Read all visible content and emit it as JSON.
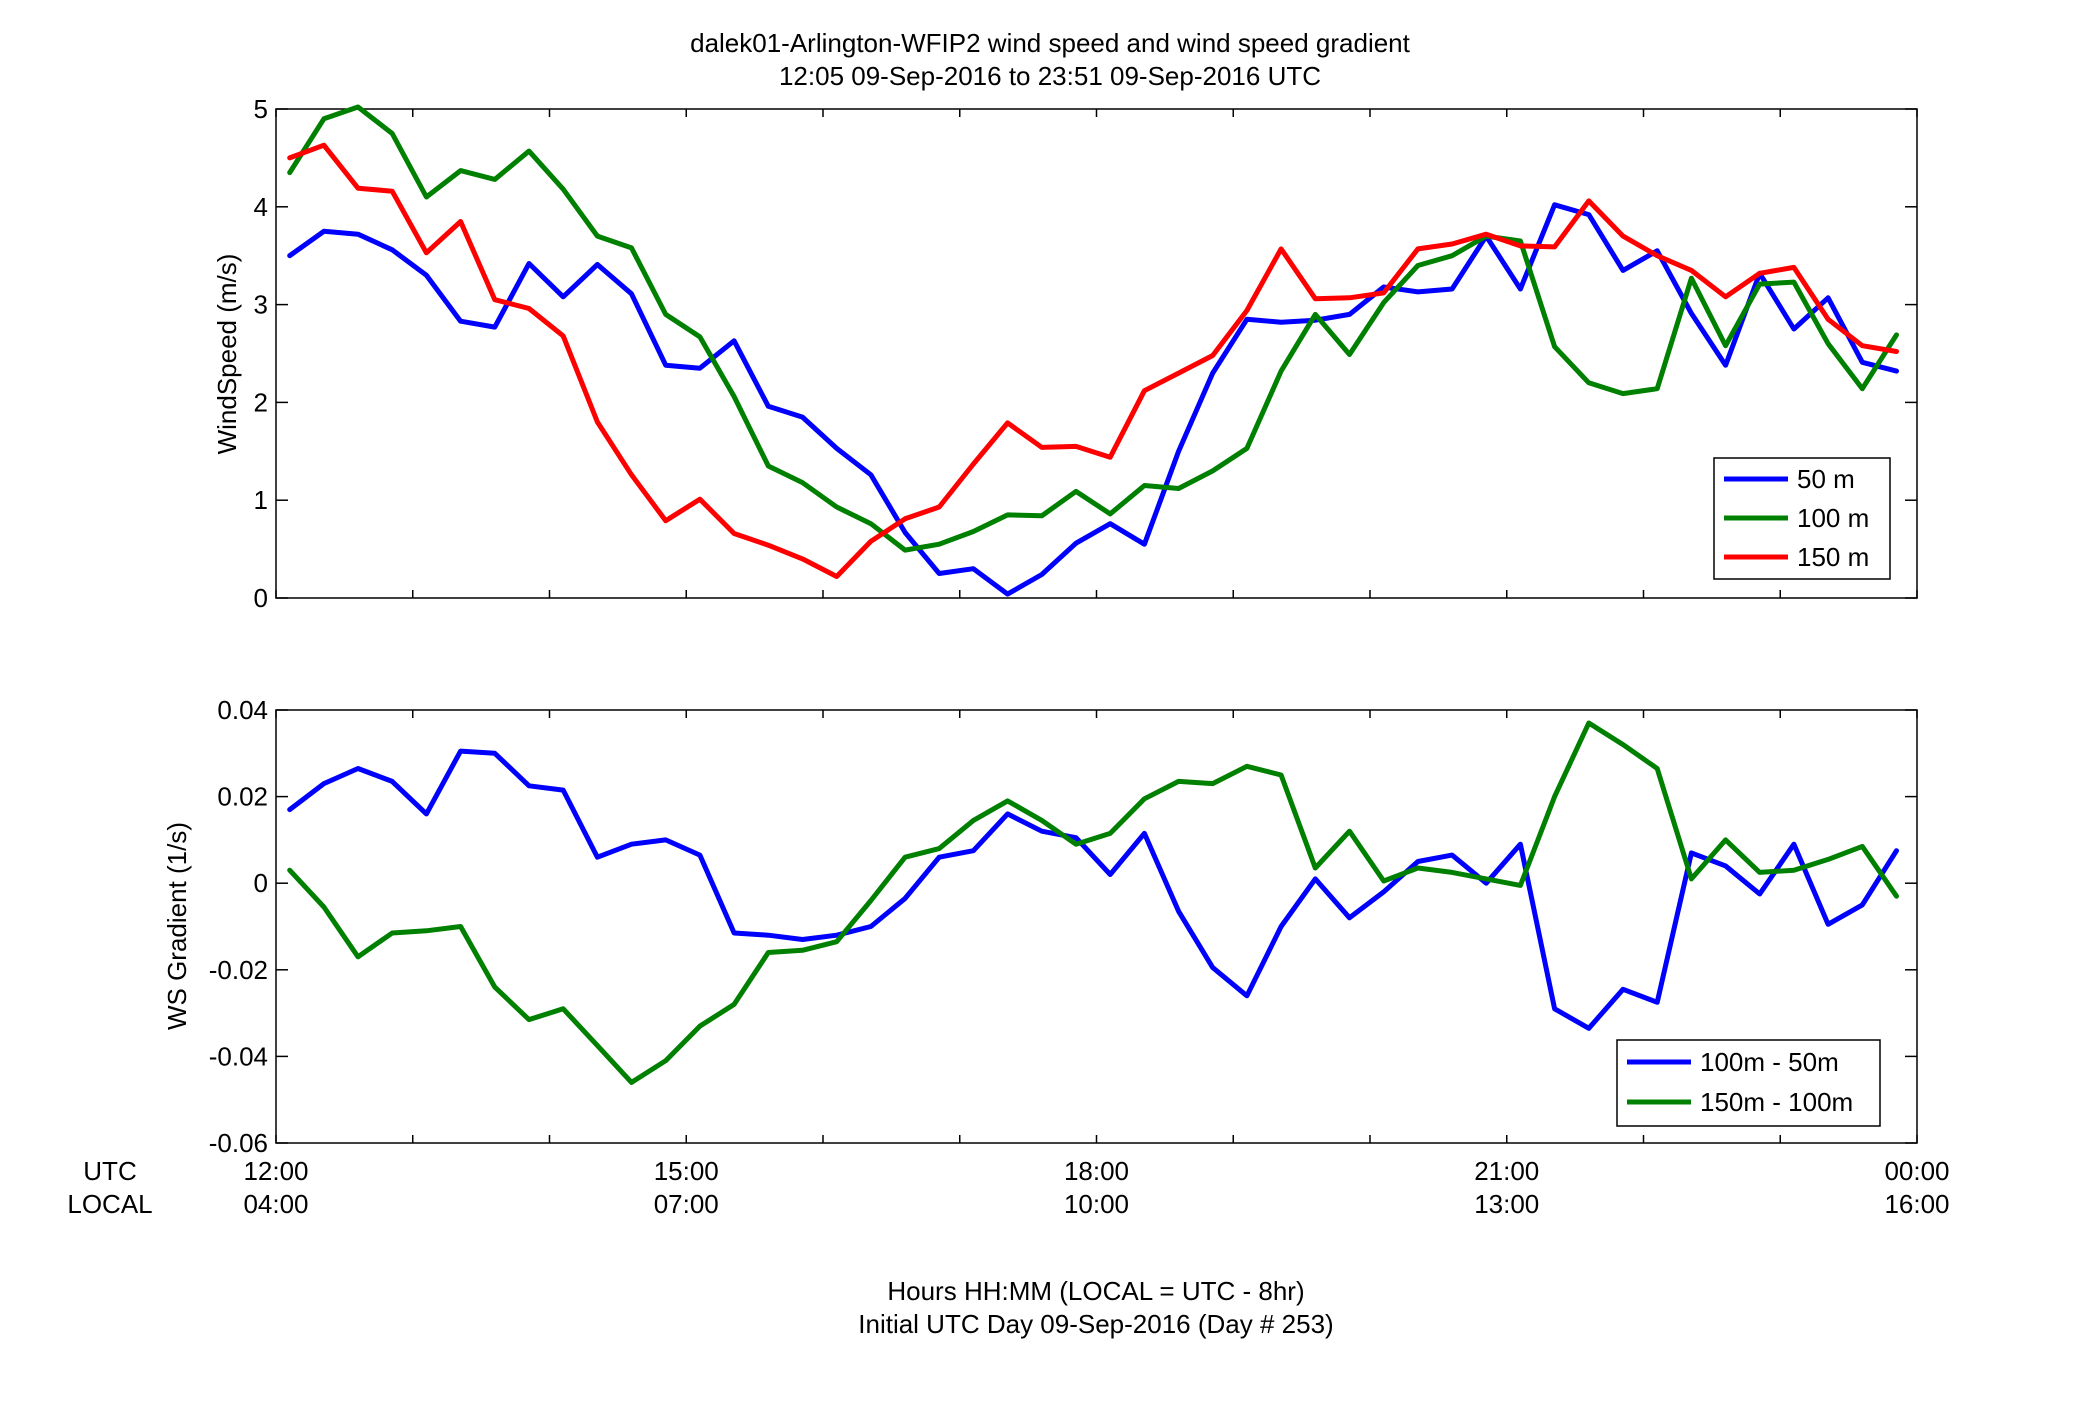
{
  "title": {
    "line1": "dalek01-Arlington-WFIP2  wind speed and wind speed gradient",
    "line2": "12:05 09-Sep-2016 to 23:51 09-Sep-2016  UTC"
  },
  "xaxis": {
    "utc_label": "UTC",
    "local_label": "LOCAL",
    "utc_ticks": [
      "12:00",
      "15:00",
      "18:00",
      "21:00",
      "00:00"
    ],
    "local_ticks": [
      "04:00",
      "07:00",
      "10:00",
      "13:00",
      "16:00"
    ],
    "xlabel_line1": "Hours HH:MM  (LOCAL = UTC - 8hr)",
    "xlabel_line2": "Initial UTC Day 09-Sep-2016 (Day # 253)"
  },
  "colors": {
    "blue": "#0000ff",
    "green": "#008000",
    "red": "#ff0000"
  },
  "chart_data": [
    {
      "type": "line",
      "ylabel": "WindSpeed (m/s)",
      "xlim": [
        12,
        24
      ],
      "ylim": [
        0,
        5
      ],
      "yticks": [
        "0",
        "1",
        "2",
        "3",
        "4",
        "5"
      ],
      "grid": false,
      "legend_position": "bottom-right",
      "x": [
        12.1,
        12.35,
        12.6,
        12.85,
        13.1,
        13.35,
        13.6,
        13.85,
        14.1,
        14.35,
        14.6,
        14.85,
        15.1,
        15.35,
        15.6,
        15.85,
        16.1,
        16.35,
        16.6,
        16.85,
        17.1,
        17.35,
        17.6,
        17.85,
        18.1,
        18.35,
        18.6,
        18.85,
        19.1,
        19.35,
        19.6,
        19.85,
        20.1,
        20.35,
        20.6,
        20.85,
        21.1,
        21.35,
        21.6,
        21.85,
        22.1,
        22.35,
        22.6,
        22.85,
        23.1,
        23.35,
        23.6,
        23.85
      ],
      "series": [
        {
          "name": "50 m",
          "color": "#0000ff",
          "values": [
            3.5,
            3.75,
            3.72,
            3.56,
            3.3,
            2.83,
            2.77,
            3.42,
            3.08,
            3.41,
            3.11,
            2.38,
            2.35,
            2.63,
            1.96,
            1.85,
            1.53,
            1.26,
            0.67,
            0.25,
            0.3,
            0.04,
            0.24,
            0.56,
            0.76,
            0.55,
            1.5,
            2.3,
            2.85,
            2.82,
            2.84,
            2.9,
            3.18,
            3.13,
            3.16,
            3.7,
            3.16,
            4.02,
            3.92,
            3.35,
            3.55,
            2.91,
            2.38,
            3.32,
            2.75,
            3.07,
            2.41,
            2.32
          ]
        },
        {
          "name": "100 m",
          "color": "#008000",
          "values": [
            4.35,
            4.9,
            5.02,
            4.75,
            4.1,
            4.37,
            4.28,
            4.57,
            4.18,
            3.7,
            3.58,
            2.9,
            2.67,
            2.06,
            1.35,
            1.18,
            0.93,
            0.76,
            0.49,
            0.55,
            0.68,
            0.85,
            0.84,
            1.09,
            0.86,
            1.15,
            1.12,
            1.3,
            1.53,
            2.32,
            2.9,
            2.49,
            3.02,
            3.4,
            3.5,
            3.7,
            3.65,
            2.57,
            2.2,
            2.09,
            2.14,
            3.27,
            2.58,
            3.21,
            3.23,
            2.6,
            2.14,
            2.69
          ]
        },
        {
          "name": "150 m",
          "color": "#ff0000",
          "values": [
            4.5,
            4.63,
            4.19,
            4.16,
            3.53,
            3.85,
            3.05,
            2.96,
            2.68,
            1.8,
            1.26,
            0.79,
            1.01,
            0.66,
            0.54,
            0.4,
            0.22,
            0.58,
            0.81,
            0.93,
            1.37,
            1.79,
            1.54,
            1.55,
            1.44,
            2.12,
            2.3,
            2.48,
            2.94,
            3.57,
            3.06,
            3.07,
            3.12,
            3.57,
            3.62,
            3.72,
            3.6,
            3.59,
            4.06,
            3.7,
            3.5,
            3.35,
            3.08,
            3.32,
            3.38,
            2.85,
            2.58,
            2.52
          ]
        }
      ]
    },
    {
      "type": "line",
      "ylabel": "WS Gradient (1/s)",
      "xlim": [
        12,
        24
      ],
      "ylim": [
        -0.06,
        0.04
      ],
      "yticks": [
        "-0.06",
        "-0.04",
        "-0.02",
        "0",
        "0.02",
        "0.04"
      ],
      "grid": false,
      "legend_position": "bottom-right",
      "x": [
        12.1,
        12.35,
        12.6,
        12.85,
        13.1,
        13.35,
        13.6,
        13.85,
        14.1,
        14.35,
        14.6,
        14.85,
        15.1,
        15.35,
        15.6,
        15.85,
        16.1,
        16.35,
        16.6,
        16.85,
        17.1,
        17.35,
        17.6,
        17.85,
        18.1,
        18.35,
        18.6,
        18.85,
        19.1,
        19.35,
        19.6,
        19.85,
        20.1,
        20.35,
        20.6,
        20.85,
        21.1,
        21.35,
        21.6,
        21.85,
        22.1,
        22.35,
        22.6,
        22.85,
        23.1,
        23.35,
        23.6,
        23.85
      ],
      "series": [
        {
          "name": "100m - 50m",
          "color": "#0000ff",
          "values": [
            0.017,
            0.023,
            0.0265,
            0.0235,
            0.016,
            0.0305,
            0.03,
            0.0225,
            0.0215,
            0.006,
            0.009,
            0.01,
            0.0065,
            -0.0115,
            -0.012,
            -0.013,
            -0.012,
            -0.01,
            -0.0035,
            0.006,
            0.0075,
            0.016,
            0.012,
            0.0105,
            0.002,
            0.0115,
            -0.0065,
            -0.0195,
            -0.026,
            -0.01,
            0.001,
            -0.008,
            -0.002,
            0.005,
            0.0065,
            0.0,
            0.009,
            -0.029,
            -0.0335,
            -0.0245,
            -0.0275,
            0.007,
            0.004,
            -0.0025,
            0.009,
            -0.0095,
            -0.005,
            0.0075
          ]
        },
        {
          "name": "150m - 100m",
          "color": "#008000",
          "values": [
            0.003,
            -0.0055,
            -0.017,
            -0.0115,
            -0.011,
            -0.01,
            -0.024,
            -0.0315,
            -0.029,
            -0.0375,
            -0.046,
            -0.041,
            -0.033,
            -0.028,
            -0.016,
            -0.0155,
            -0.0135,
            -0.004,
            0.006,
            0.008,
            0.0145,
            0.019,
            0.0145,
            0.009,
            0.0115,
            0.0195,
            0.0235,
            0.023,
            0.027,
            0.025,
            0.0035,
            0.012,
            0.0005,
            0.0035,
            0.0025,
            0.001,
            -0.0005,
            0.02,
            0.037,
            0.032,
            0.0265,
            0.001,
            0.01,
            0.0025,
            0.003,
            0.0055,
            0.0085,
            -0.003
          ]
        }
      ]
    }
  ]
}
